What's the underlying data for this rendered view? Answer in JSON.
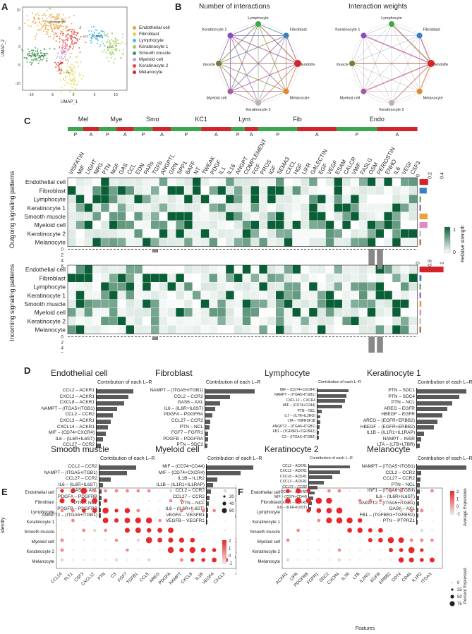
{
  "panels": {
    "a": "A",
    "b": "B",
    "c": "C",
    "d": "D",
    "e": "E",
    "f": "F"
  },
  "umap": {
    "xlabel": "UMAP_1",
    "ylabel": "UMAP_2",
    "xticks": [
      "-10",
      "-5",
      "0",
      "5",
      "10"
    ],
    "yticks": [
      "10",
      "5",
      "0",
      "-5",
      "-10"
    ],
    "cluster_labels": [
      "Endothelial cell",
      "KC1",
      "Smooth muscle",
      "KC2",
      "Lym",
      "Fib"
    ],
    "legend": [
      {
        "name": "Endothelial cell",
        "color": "#e8a33a"
      },
      {
        "name": "Fibroblast",
        "color": "#e2d24b"
      },
      {
        "name": "Lymphocyte",
        "color": "#4bb6e0"
      },
      {
        "name": "Keratinocyte 1",
        "color": "#9ccd5a"
      },
      {
        "name": "Smooth muscle",
        "color": "#3a9c48"
      },
      {
        "name": "Myeloid cell",
        "color": "#c59ad6"
      },
      {
        "name": "Keratinocyte 2",
        "color": "#e1474a"
      },
      {
        "name": "Melanocyte",
        "color": "#d42329"
      }
    ]
  },
  "networks": {
    "titles": [
      "Number of interactions",
      "Interaction weights"
    ],
    "nodes": [
      {
        "name": "Lymphocyte",
        "color": "#3aa84a"
      },
      {
        "name": "Fibroblast",
        "color": "#3a7fc6"
      },
      {
        "name": "Endothelial cell",
        "color": "#d42329"
      },
      {
        "name": "Melanocyte",
        "color": "#e08b2a"
      },
      {
        "name": "Keratinocyte 2",
        "color": "#b5b5b5"
      },
      {
        "name": "Myeloid cell",
        "color": "#a35aa8"
      },
      {
        "name": "Smooth muscle",
        "color": "#7a7a3a"
      },
      {
        "name": "Keratinocyte 1",
        "color": "#8a4bbf"
      }
    ]
  },
  "heatmap": {
    "groups": [
      "Mel",
      "Mye",
      "Smo",
      "KC1",
      "Lym",
      "Fib",
      "Endo"
    ],
    "pa": [
      "P",
      "A"
    ],
    "pathways": [
      "VISFATIN",
      "MIF",
      "LIGHT",
      "NRG",
      "PTN",
      "NGF",
      "GAS",
      "CCL",
      "EDN",
      "PARs",
      "TGFb",
      "ANGPTL",
      "GRN",
      "SPP1",
      "BAFF",
      "NT",
      "TWEAK",
      "PDGF",
      "IL1",
      "IL16",
      "ANGPT",
      "COMPLEMENT",
      "FGF",
      "PROS",
      "IGF",
      "SEMA3",
      "CXCL",
      "HGF",
      "LIFR",
      "GALECTIN",
      "EGF",
      "VEGF",
      "ESAM",
      "CALCR",
      "VWF",
      "FASLG",
      "OSM",
      "PERIOSTIN",
      "ENHO",
      "IL6",
      "VEGI",
      "CSF3"
    ],
    "rows": [
      "Endothelial cell",
      "Fibroblast",
      "Lymphocyte",
      "Keratinocyte 1",
      "Smooth muscle",
      "Myeloid cell",
      "Keratinocyte 2",
      "Melanocyte"
    ],
    "outgoing_label": "Outgoing signaling patterns",
    "incoming_label": "Incoming signaling patterns",
    "legend_title": "Relative strength",
    "legend_ticks": [
      "1",
      "0"
    ],
    "bar_ticks_out": [
      "0",
      "0.2",
      "0.4"
    ],
    "bar_ticks_in": [
      "0",
      "0.5",
      "1"
    ],
    "ybar_ticks": [
      "0",
      "2",
      "4",
      "6"
    ],
    "row_colors": [
      "#d42329",
      "#3a7fc6",
      "#3aa84a",
      "#8a4bbf",
      "#e8a33a",
      "#e08bc6",
      "#b5b5b5",
      "#a0582a"
    ],
    "out_bars": [
      0.36,
      0.3,
      0.04,
      0.04,
      0.34,
      0.33,
      0.04,
      0.03
    ],
    "in_bars": [
      1.0,
      0.08,
      0.04,
      0.05,
      0.08,
      0.07,
      0.04,
      0.06
    ]
  },
  "contrib": {
    "subtitle": "Contribution of each L–R",
    "cells": [
      {
        "title": "Endothelial cell",
        "items": [
          {
            "lr": "CCL2 – ACKR1",
            "v": 1.0
          },
          {
            "lr": "CXCL2 – ACKR1",
            "v": 0.86
          },
          {
            "lr": "CXCL8 – ACKR1",
            "v": 0.74
          },
          {
            "lr": "NAMPT – (ITGA5+ITGB1)",
            "v": 0.56
          },
          {
            "lr": "CCL2 – CCR2",
            "v": 0.45
          },
          {
            "lr": "CXCL3 – ACKR1",
            "v": 0.38
          },
          {
            "lr": "CXCL14 – ACKR1",
            "v": 0.3
          },
          {
            "lr": "MIF – (CD74+CXCR4)",
            "v": 0.25
          },
          {
            "lr": "IL6 – (IL6R+IL6ST)",
            "v": 0.17
          },
          {
            "lr": "CCL27 – CCR2",
            "v": 0.12
          }
        ]
      },
      {
        "title": "Fibroblast",
        "items": [
          {
            "lr": "NAMPT – (ITGA5+ITGB1)",
            "v": 1.0
          },
          {
            "lr": "CCL2 – CCR2",
            "v": 0.5
          },
          {
            "lr": "GAS6 – AXL",
            "v": 0.3
          },
          {
            "lr": "IL6 – (IL6R+IL6ST)",
            "v": 0.2
          },
          {
            "lr": "PDGFA – PDGFRA",
            "v": 0.14
          },
          {
            "lr": "CCL27 – CCR2",
            "v": 0.1
          },
          {
            "lr": "PTN – NCL",
            "v": 0.08
          },
          {
            "lr": "FGF7 – FGFR1",
            "v": 0.06
          },
          {
            "lr": "PDGFB – PDGFRA",
            "v": 0.05
          },
          {
            "lr": "PTN – SDC2",
            "v": 0.04
          }
        ]
      },
      {
        "title": "Lymphocyte",
        "items": [
          {
            "lr": "MIF – (CD74+CXCR4)",
            "v": 1.0
          },
          {
            "lr": "NAMPT – (ITGA5+ITGB1)",
            "v": 0.94
          },
          {
            "lr": "CXCL12 – CXCR4",
            "v": 0.88
          },
          {
            "lr": "MIF – (CD74+CD44)",
            "v": 0.8
          },
          {
            "lr": "PTN – NCL",
            "v": 0.14
          },
          {
            "lr": "IL7 – (IL7R+IL2RG)",
            "v": 0.1
          },
          {
            "lr": "LTA – TNFRSF1B",
            "v": 0.08
          },
          {
            "lr": "ANGPT2 – (ITGA5+ITGB1)",
            "v": 0.06
          },
          {
            "lr": "FB1 – (TGFBR1+TGFBR2)",
            "v": 0.05
          },
          {
            "lr": "C3 – (ITGAX+ITGB2)",
            "v": 0.04
          }
        ]
      },
      {
        "title": "Keratinocyte 1",
        "items": [
          {
            "lr": "PTN – SDC1",
            "v": 1.0
          },
          {
            "lr": "PTN – SDC4",
            "v": 0.86
          },
          {
            "lr": "PTN – NCL",
            "v": 0.72
          },
          {
            "lr": "AREG – EGFR",
            "v": 0.62
          },
          {
            "lr": "HBEGF – EGFR",
            "v": 0.52
          },
          {
            "lr": "AREG – (EGFR+ERBB2)",
            "v": 0.42
          },
          {
            "lr": "HBEGF – (EGFR+ERBB2)",
            "v": 0.34
          },
          {
            "lr": "IL1B – (IL1R1+IL1RAP)",
            "v": 0.14
          },
          {
            "lr": "NAMPT – INSR",
            "v": 0.08
          },
          {
            "lr": "LTA – (LTB+LTBR)",
            "v": 0.06
          }
        ]
      },
      {
        "title": "Smooth muscle",
        "items": [
          {
            "lr": "CCL2 – CCR2",
            "v": 1.0
          },
          {
            "lr": "NAMPT – (ITGA5+ITGB1)",
            "v": 0.74
          },
          {
            "lr": "CCL27 – CCR2",
            "v": 0.3
          },
          {
            "lr": "IL6 – (IL6R+IL6ST)",
            "v": 0.1
          },
          {
            "lr": "GAS6 – AXL",
            "v": 0.06
          },
          {
            "lr": "PDGFA – PDGFRB",
            "v": 0.05
          },
          {
            "lr": "PTN – NCL",
            "v": 0.04
          },
          {
            "lr": "PDGFB – PDGFRB",
            "v": 0.03
          },
          {
            "lr": "ANGPT2 – (ITGA5+ITGB1)",
            "v": 0.03
          }
        ]
      },
      {
        "title": "Myeloid cell",
        "items": [
          {
            "lr": "MIF – (CD74+CD44)",
            "v": 1.0
          },
          {
            "lr": "MIF – (CD74+CXCR4)",
            "v": 0.72
          },
          {
            "lr": "IL1B – IL1R2",
            "v": 0.22
          },
          {
            "lr": "IL1B – (IL1R1+IL1RAP)",
            "v": 0.14
          },
          {
            "lr": "CCL2 – CCR2",
            "v": 0.09
          },
          {
            "lr": "CCL27 – CCR2",
            "v": 0.06
          },
          {
            "lr": "PTN – NCL",
            "v": 0.04
          },
          {
            "lr": "IL6 – (IL6R+IL6ST)",
            "v": 0.03
          },
          {
            "lr": "VEGFA – VEGFR1",
            "v": 0.03
          },
          {
            "lr": "VEGFB – VEGFR1",
            "v": 0.02
          }
        ]
      },
      {
        "title": "Keratinocyte 2",
        "items": [
          {
            "lr": "CCL2 – ACKR1",
            "v": 1.0
          },
          {
            "lr": "CXCL2 – ACKR1",
            "v": 0.76
          },
          {
            "lr": "CXCL8 – ACKR1",
            "v": 0.56
          },
          {
            "lr": "CXCL3 – ACKR1",
            "v": 0.36
          },
          {
            "lr": "CCL27 – CCR2",
            "v": 0.2
          },
          {
            "lr": "CCL14 – ACKR1",
            "v": 0.14
          },
          {
            "lr": "MIF – (CD74+CD44)",
            "v": 0.1
          },
          {
            "lr": "CXCL1 – ACKR1",
            "v": 0.07
          },
          {
            "lr": "IL6 – (IL6R+IL6ST)",
            "v": 0.05
          }
        ]
      },
      {
        "title": "Melanocyte",
        "items": [
          {
            "lr": "NAMPT – (ITGA5+ITGB1)",
            "v": 1.0
          },
          {
            "lr": "CCL2 – CCR2",
            "v": 0.08
          },
          {
            "lr": "CCL27 – CCR2",
            "v": 0.07
          },
          {
            "lr": "PTN – NCL",
            "v": 0.06
          },
          {
            "lr": "IGF1 – (ITGA6+ITGB4)",
            "v": 0.05
          },
          {
            "lr": "IL6 – (IL6R+IL6ST)",
            "v": 0.04
          },
          {
            "lr": "ANGPT2 – (ITGA5+ITGB1)",
            "v": 0.04
          },
          {
            "lr": "GAS6 – AXL",
            "v": 0.03
          },
          {
            "lr": "FB1 – (TGFBR1+TGFBR2)",
            "v": 0.03
          },
          {
            "lr": "PTN – PTPRZ1",
            "v": 0.02
          }
        ]
      }
    ]
  },
  "dotE": {
    "ylabel": "Identity",
    "features": [
      "CCL14",
      "FLT1",
      "CSF3",
      "CXCL12",
      "PTN",
      "C3",
      "FGF7",
      "TGFB1",
      "CCL5",
      "AREG",
      "PDGFA",
      "NAMPT",
      "CXCL8",
      "IL1B",
      "VEGFA",
      "CXCL3"
    ],
    "size_title": "Percent Expressed",
    "size_ticks": [
      "20",
      "40",
      "60"
    ],
    "color_title": "Average Expression",
    "color_ticks": [
      "2",
      "1",
      "0",
      "-1"
    ]
  },
  "dotF": {
    "xlabel": "Features",
    "features": [
      "ACKR1",
      "LIFR",
      "PDGFRB",
      "FGFR1",
      "SDC2",
      "CXCR4",
      "IL7R",
      "LTB",
      "IL2RG",
      "EGFR",
      "ERBB2",
      "CD74",
      "CD44",
      "IL1R2",
      "ITGAX"
    ],
    "size_title": "Percent Expressed",
    "size_ticks": [
      "0",
      "25",
      "50",
      "75"
    ],
    "color_title": "Average Expression",
    "color_ticks": [
      "2",
      "1",
      "0",
      "-1"
    ]
  },
  "identity_rows": [
    "Endothelial cell",
    "Fibroblast",
    "Lymphocyte",
    "Keratinocyte 1",
    "Smooth muscle",
    "Myeloid cell",
    "Keratinocyte 2",
    "Melanocyte"
  ]
}
